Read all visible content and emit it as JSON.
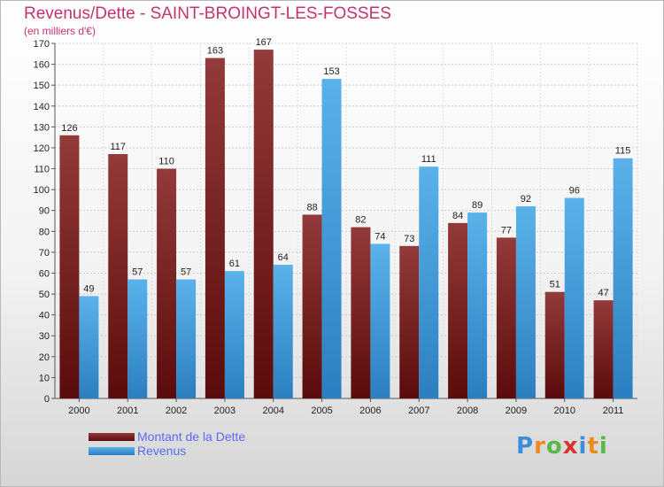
{
  "title": "Revenus/Dette - SAINT-BROINGT-LES-FOSSES",
  "subtitle": "(en milliers d'€)",
  "logo": {
    "letters": [
      "P",
      "r",
      "o",
      "x",
      "i",
      "t",
      "i"
    ],
    "colors": [
      "#3a8fd8",
      "#ef8a1e",
      "#58b848",
      "#d9332e",
      "#3a8fd8",
      "#ef8a1e",
      "#58b848"
    ]
  },
  "chart_data": {
    "type": "bar",
    "title": "Revenus/Dette - SAINT-BROINGT-LES-FOSSES",
    "ylabel": "(en milliers d'€)",
    "categories": [
      "2000",
      "2001",
      "2002",
      "2003",
      "2004",
      "2005",
      "2006",
      "2007",
      "2008",
      "2009",
      "2010",
      "2011"
    ],
    "series": [
      {
        "name": "Montant de la Dette",
        "color": "#8b2d2d",
        "values": [
          126,
          117,
          110,
          163,
          167,
          88,
          82,
          73,
          84,
          77,
          51,
          47
        ]
      },
      {
        "name": "Revenus",
        "color": "#4ea7e6",
        "values": [
          49,
          57,
          57,
          61,
          64,
          153,
          74,
          111,
          89,
          92,
          96,
          115
        ]
      }
    ],
    "yticks": [
      0,
      10,
      20,
      30,
      40,
      50,
      60,
      70,
      80,
      90,
      100,
      110,
      120,
      130,
      140,
      150,
      160,
      170
    ],
    "ylim": [
      0,
      170
    ],
    "grid": true,
    "legend_position": "bottom-left"
  }
}
